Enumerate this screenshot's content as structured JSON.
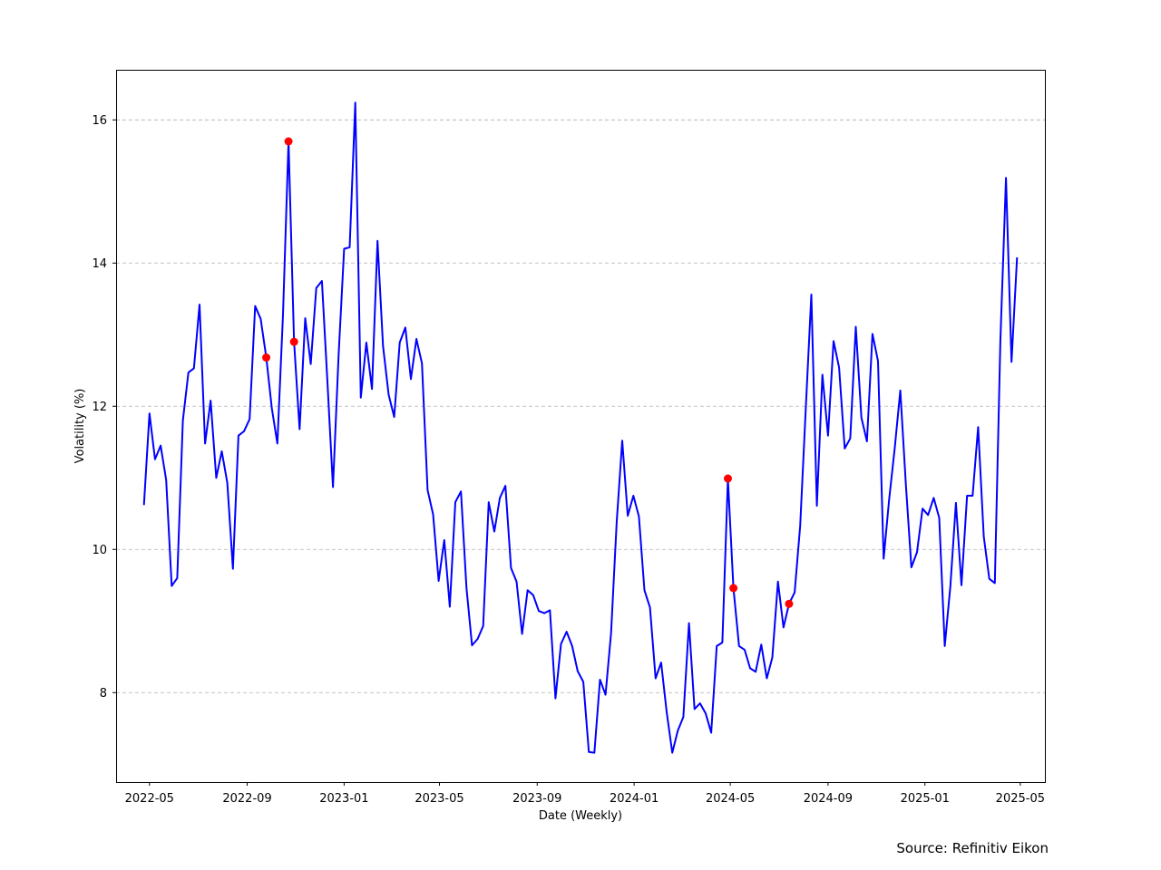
{
  "chart_data": {
    "type": "line",
    "xlabel": "Date (Weekly)",
    "ylabel": "Volatility (%)",
    "x_tick_labels": [
      "2022-05",
      "2022-09",
      "2023-01",
      "2023-05",
      "2023-09",
      "2024-01",
      "2024-05",
      "2024-09",
      "2025-01",
      "2025-05"
    ],
    "y_tick_labels": [
      "8",
      "10",
      "12",
      "14",
      "16"
    ],
    "xlim": [
      "2022-03-20",
      "2025-06-01"
    ],
    "ylim": [
      6.75,
      16.7
    ],
    "grid": "y-dashed",
    "line_color": "#0000ff",
    "marker_color": "#ff0000",
    "series": [
      {
        "x": [
          "2022-04-24",
          "2022-05-01",
          "2022-05-08",
          "2022-05-15",
          "2022-05-22",
          "2022-05-29",
          "2022-06-05",
          "2022-06-12",
          "2022-06-19",
          "2022-06-26",
          "2022-07-03",
          "2022-07-10",
          "2022-07-17",
          "2022-07-24",
          "2022-07-31",
          "2022-08-07",
          "2022-08-14",
          "2022-08-21",
          "2022-08-28",
          "2022-09-04",
          "2022-09-11",
          "2022-09-18",
          "2022-09-25",
          "2022-10-02",
          "2022-10-09",
          "2022-10-16",
          "2022-10-23",
          "2022-10-30",
          "2022-11-06",
          "2022-11-13",
          "2022-11-20",
          "2022-11-27",
          "2022-12-04",
          "2022-12-11",
          "2022-12-18",
          "2022-12-25",
          "2023-01-01",
          "2023-01-08",
          "2023-01-15",
          "2023-01-22",
          "2023-01-29",
          "2023-02-05",
          "2023-02-12",
          "2023-02-19",
          "2023-02-26",
          "2023-03-05",
          "2023-03-12",
          "2023-03-19",
          "2023-03-26",
          "2023-04-02",
          "2023-04-09",
          "2023-04-16",
          "2023-04-23",
          "2023-04-30",
          "2023-05-07",
          "2023-05-14",
          "2023-05-21",
          "2023-05-28",
          "2023-06-04",
          "2023-06-11",
          "2023-06-18",
          "2023-06-25",
          "2023-07-02",
          "2023-07-09",
          "2023-07-16",
          "2023-07-23",
          "2023-07-30",
          "2023-08-06",
          "2023-08-13",
          "2023-08-20",
          "2023-08-27",
          "2023-09-03",
          "2023-09-10",
          "2023-09-17",
          "2023-09-24",
          "2023-10-01",
          "2023-10-08",
          "2023-10-15",
          "2023-10-22",
          "2023-10-29",
          "2023-11-05",
          "2023-11-12",
          "2023-11-19",
          "2023-11-26",
          "2023-12-03",
          "2023-12-10",
          "2023-12-17",
          "2023-12-24",
          "2023-12-31",
          "2024-01-07",
          "2024-01-14",
          "2024-01-21",
          "2024-01-28",
          "2024-02-04",
          "2024-02-11",
          "2024-02-18",
          "2024-02-25",
          "2024-03-03",
          "2024-03-10",
          "2024-03-17",
          "2024-03-24",
          "2024-03-31",
          "2024-04-07",
          "2024-04-14",
          "2024-04-21",
          "2024-04-28",
          "2024-05-05",
          "2024-05-12",
          "2024-05-19",
          "2024-05-26",
          "2024-06-02",
          "2024-06-09",
          "2024-06-16",
          "2024-06-23",
          "2024-06-30",
          "2024-07-07",
          "2024-07-14",
          "2024-07-21",
          "2024-07-28",
          "2024-08-04",
          "2024-08-11",
          "2024-08-18",
          "2024-08-25",
          "2024-09-01",
          "2024-09-08",
          "2024-09-15",
          "2024-09-22",
          "2024-09-29",
          "2024-10-06",
          "2024-10-13",
          "2024-10-20",
          "2024-10-27",
          "2024-11-03",
          "2024-11-10",
          "2024-11-17",
          "2024-11-24",
          "2024-12-01",
          "2024-12-08",
          "2024-12-15",
          "2024-12-22",
          "2024-12-29",
          "2025-01-05",
          "2025-01-12",
          "2025-01-19",
          "2025-01-26",
          "2025-02-02",
          "2025-02-09",
          "2025-02-16",
          "2025-02-23",
          "2025-03-02",
          "2025-03-09",
          "2025-03-16",
          "2025-03-23",
          "2025-03-30",
          "2025-04-06",
          "2025-04-13",
          "2025-04-20",
          "2025-04-27"
        ],
        "values": [
          10.62,
          11.9,
          11.26,
          11.45,
          10.97,
          9.49,
          9.6,
          11.8,
          12.47,
          12.53,
          13.42,
          11.48,
          12.08,
          11.0,
          11.37,
          10.93,
          9.73,
          11.59,
          11.65,
          11.82,
          13.4,
          13.22,
          12.68,
          11.97,
          11.48,
          13.28,
          15.7,
          12.9,
          11.68,
          13.23,
          12.59,
          13.65,
          13.75,
          12.34,
          10.87,
          12.71,
          14.2,
          14.22,
          16.24,
          12.12,
          12.89,
          12.24,
          14.31,
          12.84,
          12.16,
          11.85,
          12.89,
          13.1,
          12.38,
          12.94,
          12.6,
          10.83,
          10.49,
          9.56,
          10.13,
          9.2,
          10.66,
          10.81,
          9.46,
          8.66,
          8.75,
          8.93,
          10.66,
          10.25,
          10.72,
          10.89,
          9.74,
          9.55,
          8.82,
          9.43,
          9.36,
          9.14,
          9.11,
          9.15,
          7.92,
          8.68,
          8.85,
          8.65,
          8.3,
          8.15,
          7.17,
          7.16,
          8.18,
          7.97,
          8.83,
          10.38,
          11.52,
          10.47,
          10.75,
          10.46,
          9.43,
          9.19,
          8.2,
          8.42,
          7.73,
          7.16,
          7.47,
          7.66,
          8.97,
          7.77,
          7.85,
          7.71,
          7.44,
          8.65,
          8.7,
          10.99,
          9.46,
          8.65,
          8.6,
          8.34,
          8.29,
          8.67,
          8.2,
          8.49,
          9.55,
          8.91,
          9.24,
          9.4,
          10.33,
          11.95,
          13.56,
          10.61,
          12.44,
          11.59,
          12.91,
          12.54,
          11.41,
          11.55,
          13.11,
          11.84,
          11.51,
          13.01,
          12.63,
          9.87,
          10.7,
          11.41,
          12.22,
          10.91,
          9.75,
          9.96,
          10.57,
          10.48,
          10.72,
          10.44,
          8.65,
          9.49,
          10.65,
          9.5,
          10.75,
          10.75,
          11.71,
          10.18,
          9.59,
          9.53,
          12.91,
          15.19,
          12.62,
          14.08
        ]
      }
    ],
    "highlight_points": [
      {
        "x": "2022-09-25",
        "y": 12.68
      },
      {
        "x": "2022-10-23",
        "y": 15.7
      },
      {
        "x": "2022-10-30",
        "y": 12.9
      },
      {
        "x": "2024-04-28",
        "y": 10.99
      },
      {
        "x": "2024-05-05",
        "y": 9.46
      },
      {
        "x": "2024-07-14",
        "y": 9.24
      }
    ]
  },
  "footer": {
    "source": "Source: Refinitiv Eikon"
  }
}
